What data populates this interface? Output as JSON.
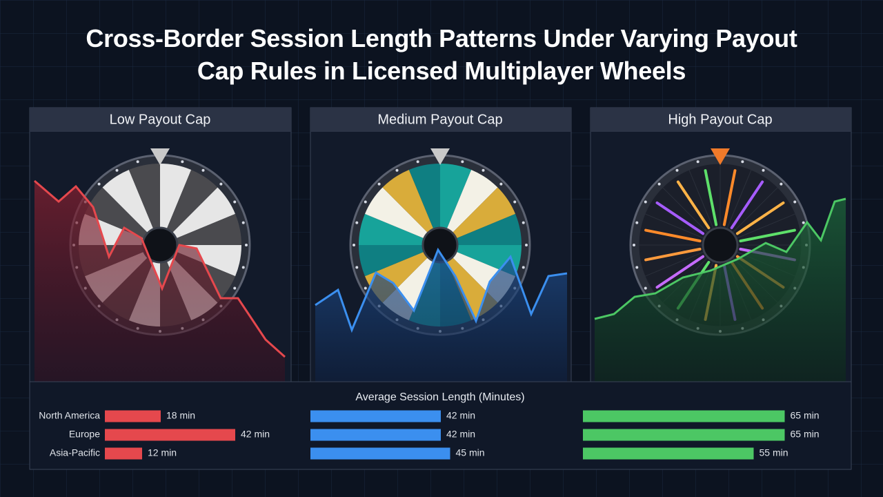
{
  "title": "Cross-Border Session Length Patterns Under Varying Payout Cap Rules in Licensed Multiplayer Wheels",
  "chart_data": {
    "type": "bar",
    "orientation": "horizontal",
    "title": "Average Session Length (Minutes)",
    "categories": [
      "North America",
      "Europe",
      "Asia-Pacific"
    ],
    "series": [
      {
        "name": "Low Payout Cap",
        "color": "#e5484d",
        "values": [
          18,
          42,
          12
        ],
        "value_labels": [
          "18 min",
          "42 min",
          "12 min"
        ]
      },
      {
        "name": "Medium Payout Cap",
        "color": "#3b8fef",
        "values": [
          42,
          42,
          45
        ],
        "value_labels": [
          "42 min",
          "42 min",
          "45 min"
        ]
      },
      {
        "name": "High Payout Cap",
        "color": "#4cc764",
        "values": [
          65,
          65,
          55
        ],
        "value_labels": [
          "65 min",
          "65 min",
          "55 min"
        ]
      }
    ]
  }
}
